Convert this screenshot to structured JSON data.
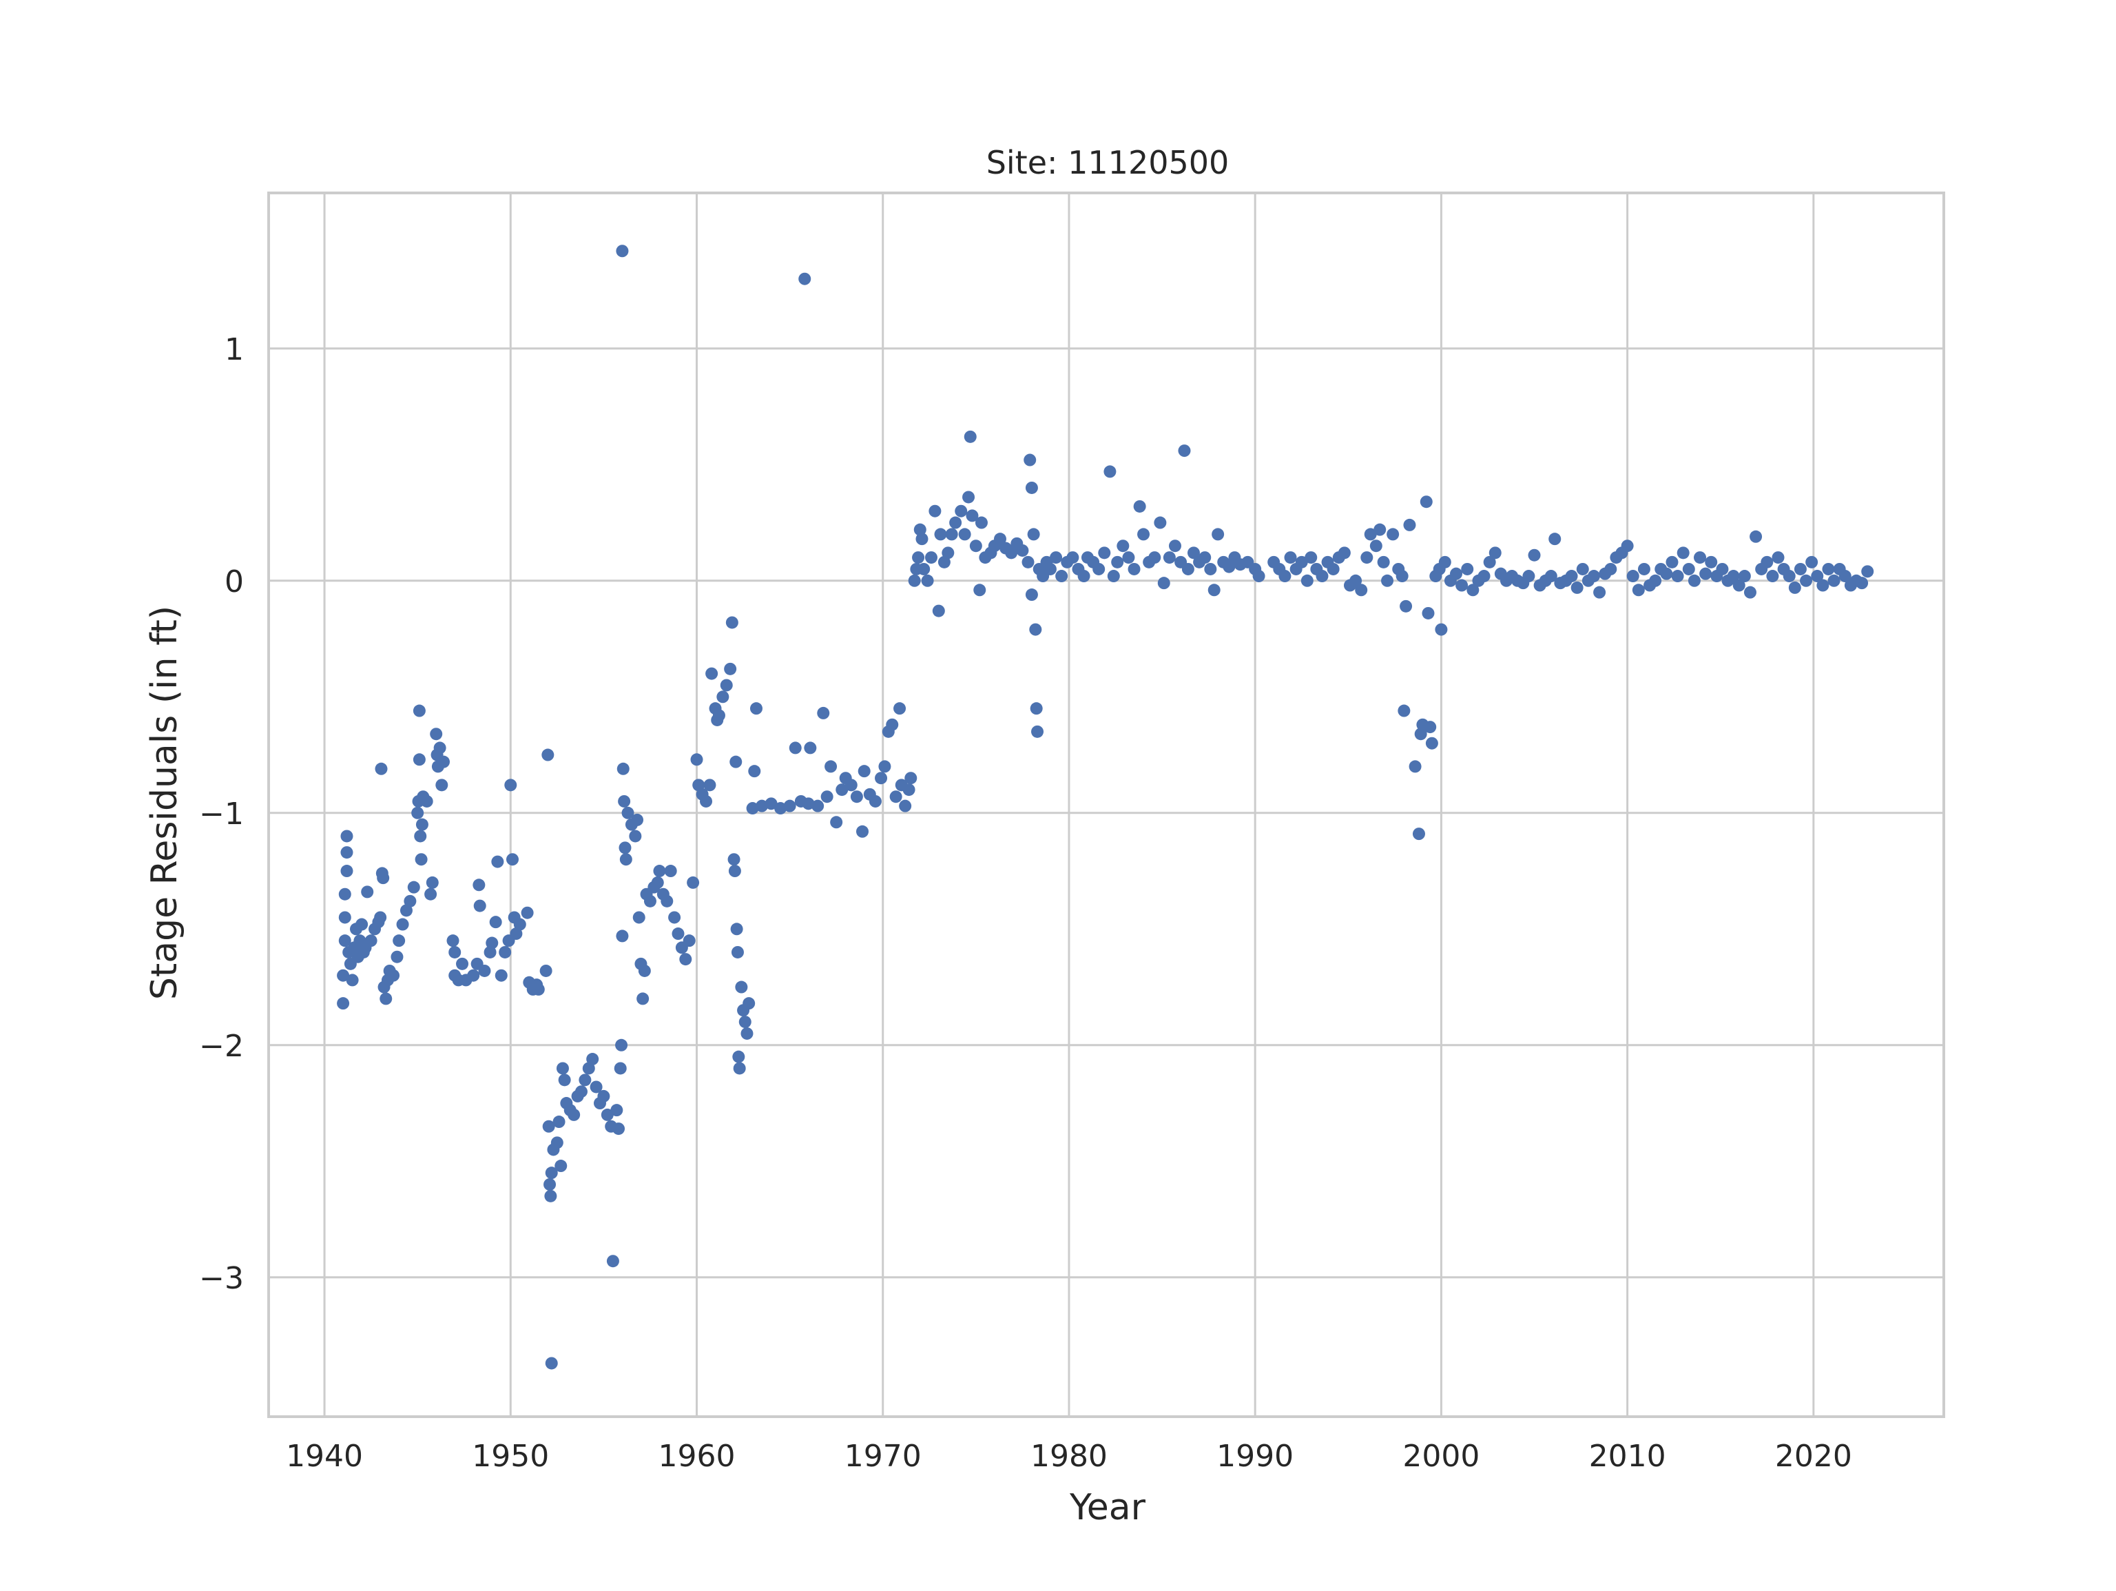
{
  "chart_data": {
    "type": "scatter",
    "title": "Site: 11120500",
    "xlabel": "Year",
    "ylabel": "Stage Residuals (in ft)",
    "xlim": [
      1937,
      2027
    ],
    "ylim": [
      -3.6,
      1.67
    ],
    "xticks": [
      1940,
      1950,
      1960,
      1970,
      1980,
      1990,
      2000,
      2010,
      2020
    ],
    "xtick_labels": [
      "1940",
      "1950",
      "1960",
      "1970",
      "1980",
      "1990",
      "2000",
      "2010",
      "2020"
    ],
    "yticks": [
      1,
      0,
      -1,
      -2,
      -3
    ],
    "ytick_labels": [
      "1",
      "0",
      "−1",
      "−2",
      "−3"
    ],
    "grid": true,
    "color": "#4c72b0",
    "points": [
      [
        1941.0,
        -1.82
      ],
      [
        1941.0,
        -1.7
      ],
      [
        1941.1,
        -1.55
      ],
      [
        1941.1,
        -1.45
      ],
      [
        1941.1,
        -1.35
      ],
      [
        1941.2,
        -1.25
      ],
      [
        1941.2,
        -1.17
      ],
      [
        1941.2,
        -1.1
      ],
      [
        1941.3,
        -1.6
      ],
      [
        1941.4,
        -1.65
      ],
      [
        1941.5,
        -1.72
      ],
      [
        1941.6,
        -1.58
      ],
      [
        1941.7,
        -1.5
      ],
      [
        1941.8,
        -1.62
      ],
      [
        1941.9,
        -1.55
      ],
      [
        1942.0,
        -1.48
      ],
      [
        1942.1,
        -1.6
      ],
      [
        1942.2,
        -1.58
      ],
      [
        1942.3,
        -1.34
      ],
      [
        1942.5,
        -1.55
      ],
      [
        1942.7,
        -1.5
      ],
      [
        1942.9,
        -1.47
      ],
      [
        1943.0,
        -1.45
      ],
      [
        1943.05,
        -0.81
      ],
      [
        1943.1,
        -1.26
      ],
      [
        1943.15,
        -1.28
      ],
      [
        1943.2,
        -1.75
      ],
      [
        1943.3,
        -1.8
      ],
      [
        1943.4,
        -1.72
      ],
      [
        1943.5,
        -1.68
      ],
      [
        1943.7,
        -1.7
      ],
      [
        1943.9,
        -1.62
      ],
      [
        1944.0,
        -1.55
      ],
      [
        1944.2,
        -1.48
      ],
      [
        1944.4,
        -1.42
      ],
      [
        1944.6,
        -1.38
      ],
      [
        1944.8,
        -1.32
      ],
      [
        1945.0,
        -1.0
      ],
      [
        1945.05,
        -0.95
      ],
      [
        1945.1,
        -0.56
      ],
      [
        1945.1,
        -0.77
      ],
      [
        1945.15,
        -1.1
      ],
      [
        1945.2,
        -1.2
      ],
      [
        1945.25,
        -1.05
      ],
      [
        1945.3,
        -0.93
      ],
      [
        1945.5,
        -0.95
      ],
      [
        1945.7,
        -1.35
      ],
      [
        1945.8,
        -1.3
      ],
      [
        1946.0,
        -0.66
      ],
      [
        1946.05,
        -0.75
      ],
      [
        1946.1,
        -0.8
      ],
      [
        1946.2,
        -0.72
      ],
      [
        1946.3,
        -0.88
      ],
      [
        1946.4,
        -0.78
      ],
      [
        1946.9,
        -1.55
      ],
      [
        1947.0,
        -1.6
      ],
      [
        1947.0,
        -1.7
      ],
      [
        1947.2,
        -1.72
      ],
      [
        1947.4,
        -1.65
      ],
      [
        1947.6,
        -1.72
      ],
      [
        1948.0,
        -1.7
      ],
      [
        1948.2,
        -1.65
      ],
      [
        1948.3,
        -1.31
      ],
      [
        1948.35,
        -1.4
      ],
      [
        1948.6,
        -1.68
      ],
      [
        1948.9,
        -1.6
      ],
      [
        1949.0,
        -1.56
      ],
      [
        1949.2,
        -1.47
      ],
      [
        1949.3,
        -1.21
      ],
      [
        1949.5,
        -1.7
      ],
      [
        1949.7,
        -1.6
      ],
      [
        1949.9,
        -1.55
      ],
      [
        1950.0,
        -0.88
      ],
      [
        1950.1,
        -1.2
      ],
      [
        1950.2,
        -1.45
      ],
      [
        1950.3,
        -1.52
      ],
      [
        1950.5,
        -1.48
      ],
      [
        1950.9,
        -1.43
      ],
      [
        1951.0,
        -1.73
      ],
      [
        1951.2,
        -1.76
      ],
      [
        1951.4,
        -1.74
      ],
      [
        1951.5,
        -1.76
      ],
      [
        1951.9,
        -1.68
      ],
      [
        1952.0,
        -0.75
      ],
      [
        1952.05,
        -2.35
      ],
      [
        1952.1,
        -2.6
      ],
      [
        1952.15,
        -2.65
      ],
      [
        1952.2,
        -2.55
      ],
      [
        1952.2,
        -3.37
      ],
      [
        1952.3,
        -2.45
      ],
      [
        1952.5,
        -2.42
      ],
      [
        1952.6,
        -2.33
      ],
      [
        1952.7,
        -2.52
      ],
      [
        1952.8,
        -2.1
      ],
      [
        1952.9,
        -2.15
      ],
      [
        1953.0,
        -2.25
      ],
      [
        1953.2,
        -2.28
      ],
      [
        1953.4,
        -2.3
      ],
      [
        1953.6,
        -2.22
      ],
      [
        1953.8,
        -2.2
      ],
      [
        1954.0,
        -2.15
      ],
      [
        1954.2,
        -2.1
      ],
      [
        1954.4,
        -2.06
      ],
      [
        1954.6,
        -2.18
      ],
      [
        1954.8,
        -2.25
      ],
      [
        1955.0,
        -2.22
      ],
      [
        1955.2,
        -2.3
      ],
      [
        1955.4,
        -2.35
      ],
      [
        1955.5,
        -2.93
      ],
      [
        1955.7,
        -2.28
      ],
      [
        1955.8,
        -2.36
      ],
      [
        1955.9,
        -2.1
      ],
      [
        1955.95,
        -2.0
      ],
      [
        1956.0,
        -1.53
      ],
      [
        1956.0,
        1.42
      ],
      [
        1956.05,
        -0.81
      ],
      [
        1956.1,
        -0.95
      ],
      [
        1956.15,
        -1.15
      ],
      [
        1956.2,
        -1.2
      ],
      [
        1956.3,
        -1.0
      ],
      [
        1956.5,
        -1.05
      ],
      [
        1956.7,
        -1.1
      ],
      [
        1956.8,
        -1.03
      ],
      [
        1956.9,
        -1.45
      ],
      [
        1957.0,
        -1.65
      ],
      [
        1957.1,
        -1.8
      ],
      [
        1957.2,
        -1.68
      ],
      [
        1957.3,
        -1.35
      ],
      [
        1957.5,
        -1.38
      ],
      [
        1957.7,
        -1.32
      ],
      [
        1957.9,
        -1.3
      ],
      [
        1958.0,
        -1.25
      ],
      [
        1958.2,
        -1.35
      ],
      [
        1958.4,
        -1.38
      ],
      [
        1958.6,
        -1.25
      ],
      [
        1958.8,
        -1.45
      ],
      [
        1959.0,
        -1.52
      ],
      [
        1959.2,
        -1.58
      ],
      [
        1959.4,
        -1.63
      ],
      [
        1959.6,
        -1.55
      ],
      [
        1959.8,
        -1.3
      ],
      [
        1960.0,
        -0.77
      ],
      [
        1960.1,
        -0.88
      ],
      [
        1960.3,
        -0.92
      ],
      [
        1960.5,
        -0.95
      ],
      [
        1960.7,
        -0.88
      ],
      [
        1960.8,
        -0.4
      ],
      [
        1961.0,
        -0.55
      ],
      [
        1961.1,
        -0.6
      ],
      [
        1961.2,
        -0.58
      ],
      [
        1961.4,
        -0.5
      ],
      [
        1961.6,
        -0.45
      ],
      [
        1961.8,
        -0.38
      ],
      [
        1961.9,
        -0.18
      ],
      [
        1962.0,
        -1.2
      ],
      [
        1962.05,
        -1.25
      ],
      [
        1962.1,
        -0.78
      ],
      [
        1962.15,
        -1.5
      ],
      [
        1962.2,
        -1.6
      ],
      [
        1962.25,
        -2.05
      ],
      [
        1962.3,
        -2.1
      ],
      [
        1962.4,
        -1.75
      ],
      [
        1962.5,
        -1.85
      ],
      [
        1962.6,
        -1.9
      ],
      [
        1962.7,
        -1.95
      ],
      [
        1962.8,
        -1.82
      ],
      [
        1963.0,
        -0.98
      ],
      [
        1963.1,
        -0.82
      ],
      [
        1963.2,
        -0.55
      ],
      [
        1963.5,
        -0.97
      ],
      [
        1964.0,
        -0.96
      ],
      [
        1964.5,
        -0.98
      ],
      [
        1965.0,
        -0.97
      ],
      [
        1965.3,
        -0.72
      ],
      [
        1965.6,
        -0.95
      ],
      [
        1965.8,
        1.3
      ],
      [
        1966.0,
        -0.96
      ],
      [
        1966.1,
        -0.72
      ],
      [
        1966.5,
        -0.97
      ],
      [
        1966.8,
        -0.57
      ],
      [
        1967.0,
        -0.93
      ],
      [
        1967.2,
        -0.8
      ],
      [
        1967.5,
        -1.04
      ],
      [
        1967.8,
        -0.9
      ],
      [
        1968.0,
        -0.85
      ],
      [
        1968.3,
        -0.88
      ],
      [
        1968.6,
        -0.93
      ],
      [
        1968.9,
        -1.08
      ],
      [
        1969.0,
        -0.82
      ],
      [
        1969.3,
        -0.92
      ],
      [
        1969.6,
        -0.95
      ],
      [
        1969.9,
        -0.85
      ],
      [
        1970.1,
        -0.8
      ],
      [
        1970.3,
        -0.65
      ],
      [
        1970.5,
        -0.62
      ],
      [
        1970.7,
        -0.93
      ],
      [
        1970.9,
        -0.55
      ],
      [
        1971.0,
        -0.88
      ],
      [
        1971.2,
        -0.97
      ],
      [
        1971.4,
        -0.9
      ],
      [
        1971.5,
        -0.85
      ],
      [
        1971.7,
        0.0
      ],
      [
        1971.8,
        0.05
      ],
      [
        1971.9,
        0.1
      ],
      [
        1972.0,
        0.22
      ],
      [
        1972.1,
        0.18
      ],
      [
        1972.2,
        0.05
      ],
      [
        1972.4,
        0.0
      ],
      [
        1972.6,
        0.1
      ],
      [
        1972.8,
        0.3
      ],
      [
        1973.0,
        -0.13
      ],
      [
        1973.1,
        0.2
      ],
      [
        1973.3,
        0.08
      ],
      [
        1973.5,
        0.12
      ],
      [
        1973.7,
        0.2
      ],
      [
        1973.9,
        0.25
      ],
      [
        1974.2,
        0.3
      ],
      [
        1974.4,
        0.2
      ],
      [
        1974.6,
        0.36
      ],
      [
        1974.7,
        0.62
      ],
      [
        1974.8,
        0.28
      ],
      [
        1975.0,
        0.15
      ],
      [
        1975.2,
        -0.04
      ],
      [
        1975.3,
        0.25
      ],
      [
        1975.5,
        0.1
      ],
      [
        1975.8,
        0.12
      ],
      [
        1976.0,
        0.15
      ],
      [
        1976.3,
        0.18
      ],
      [
        1976.6,
        0.14
      ],
      [
        1976.9,
        0.12
      ],
      [
        1977.2,
        0.16
      ],
      [
        1977.5,
        0.13
      ],
      [
        1977.8,
        0.08
      ],
      [
        1977.9,
        0.52
      ],
      [
        1978.0,
        0.4
      ],
      [
        1978.0,
        -0.06
      ],
      [
        1978.1,
        0.2
      ],
      [
        1978.2,
        -0.21
      ],
      [
        1978.25,
        -0.55
      ],
      [
        1978.3,
        -0.65
      ],
      [
        1978.4,
        0.05
      ],
      [
        1978.6,
        0.02
      ],
      [
        1978.8,
        0.08
      ],
      [
        1979.0,
        0.05
      ],
      [
        1979.3,
        0.1
      ],
      [
        1979.6,
        0.02
      ],
      [
        1979.9,
        0.08
      ],
      [
        1980.2,
        0.1
      ],
      [
        1980.5,
        0.05
      ],
      [
        1980.8,
        0.02
      ],
      [
        1981.0,
        0.1
      ],
      [
        1981.3,
        0.08
      ],
      [
        1981.6,
        0.05
      ],
      [
        1981.9,
        0.12
      ],
      [
        1982.2,
        0.47
      ],
      [
        1982.4,
        0.02
      ],
      [
        1982.6,
        0.08
      ],
      [
        1982.9,
        0.15
      ],
      [
        1983.2,
        0.1
      ],
      [
        1983.5,
        0.05
      ],
      [
        1983.8,
        0.32
      ],
      [
        1984.0,
        0.2
      ],
      [
        1984.3,
        0.08
      ],
      [
        1984.6,
        0.1
      ],
      [
        1984.9,
        0.25
      ],
      [
        1985.1,
        -0.01
      ],
      [
        1985.4,
        0.1
      ],
      [
        1985.7,
        0.15
      ],
      [
        1986.0,
        0.08
      ],
      [
        1986.2,
        0.56
      ],
      [
        1986.4,
        0.05
      ],
      [
        1986.7,
        0.12
      ],
      [
        1987.0,
        0.08
      ],
      [
        1987.3,
        0.1
      ],
      [
        1987.6,
        0.05
      ],
      [
        1987.8,
        -0.04
      ],
      [
        1988.0,
        0.2
      ],
      [
        1988.3,
        0.08
      ],
      [
        1988.6,
        0.06
      ],
      [
        1988.9,
        0.1
      ],
      [
        1989.2,
        0.07
      ],
      [
        1989.6,
        0.08
      ],
      [
        1990.0,
        0.05
      ],
      [
        1990.2,
        0.02
      ],
      [
        1991.0,
        0.08
      ],
      [
        1991.3,
        0.05
      ],
      [
        1991.6,
        0.02
      ],
      [
        1991.9,
        0.1
      ],
      [
        1992.2,
        0.05
      ],
      [
        1992.5,
        0.08
      ],
      [
        1992.8,
        0.0
      ],
      [
        1993.0,
        0.1
      ],
      [
        1993.3,
        0.05
      ],
      [
        1993.6,
        0.02
      ],
      [
        1993.9,
        0.08
      ],
      [
        1994.2,
        0.05
      ],
      [
        1994.5,
        0.1
      ],
      [
        1994.8,
        0.12
      ],
      [
        1995.1,
        -0.02
      ],
      [
        1995.4,
        0.0
      ],
      [
        1995.7,
        -0.04
      ],
      [
        1996.0,
        0.1
      ],
      [
        1996.2,
        0.2
      ],
      [
        1996.5,
        0.15
      ],
      [
        1996.7,
        0.22
      ],
      [
        1996.9,
        0.08
      ],
      [
        1997.1,
        0.0
      ],
      [
        1997.4,
        0.2
      ],
      [
        1997.7,
        0.05
      ],
      [
        1997.9,
        0.02
      ],
      [
        1998.0,
        -0.56
      ],
      [
        1998.1,
        -0.11
      ],
      [
        1998.3,
        0.24
      ],
      [
        1998.6,
        -0.8
      ],
      [
        1998.8,
        -1.09
      ],
      [
        1998.9,
        -0.66
      ],
      [
        1999.0,
        -0.62
      ],
      [
        1999.2,
        0.34
      ],
      [
        1999.3,
        -0.14
      ],
      [
        1999.4,
        -0.63
      ],
      [
        1999.5,
        -0.7
      ],
      [
        1999.7,
        0.02
      ],
      [
        1999.9,
        0.05
      ],
      [
        2000.0,
        -0.21
      ],
      [
        2000.2,
        0.08
      ],
      [
        2000.5,
        0.0
      ],
      [
        2000.8,
        0.03
      ],
      [
        2001.1,
        -0.02
      ],
      [
        2001.4,
        0.05
      ],
      [
        2001.7,
        -0.04
      ],
      [
        2002.0,
        0.0
      ],
      [
        2002.3,
        0.02
      ],
      [
        2002.6,
        0.08
      ],
      [
        2002.9,
        0.12
      ],
      [
        2003.2,
        0.03
      ],
      [
        2003.5,
        0.0
      ],
      [
        2003.8,
        0.02
      ],
      [
        2004.1,
        0.0
      ],
      [
        2004.4,
        -0.01
      ],
      [
        2004.7,
        0.02
      ],
      [
        2005.0,
        0.11
      ],
      [
        2005.3,
        -0.02
      ],
      [
        2005.6,
        0.0
      ],
      [
        2005.9,
        0.02
      ],
      [
        2006.1,
        0.18
      ],
      [
        2006.4,
        -0.01
      ],
      [
        2006.7,
        0.0
      ],
      [
        2007.0,
        0.02
      ],
      [
        2007.3,
        -0.03
      ],
      [
        2007.6,
        0.05
      ],
      [
        2007.9,
        0.0
      ],
      [
        2008.2,
        0.02
      ],
      [
        2008.5,
        -0.05
      ],
      [
        2008.8,
        0.03
      ],
      [
        2009.1,
        0.05
      ],
      [
        2009.4,
        0.1
      ],
      [
        2009.7,
        0.12
      ],
      [
        2010.0,
        0.15
      ],
      [
        2010.3,
        0.02
      ],
      [
        2010.6,
        -0.04
      ],
      [
        2010.9,
        0.05
      ],
      [
        2011.2,
        -0.02
      ],
      [
        2011.5,
        0.0
      ],
      [
        2011.8,
        0.05
      ],
      [
        2012.1,
        0.03
      ],
      [
        2012.4,
        0.08
      ],
      [
        2012.7,
        0.02
      ],
      [
        2013.0,
        0.12
      ],
      [
        2013.3,
        0.05
      ],
      [
        2013.6,
        0.0
      ],
      [
        2013.9,
        0.1
      ],
      [
        2014.2,
        0.03
      ],
      [
        2014.5,
        0.08
      ],
      [
        2014.8,
        0.02
      ],
      [
        2015.1,
        0.05
      ],
      [
        2015.4,
        0.0
      ],
      [
        2015.7,
        0.02
      ],
      [
        2016.0,
        -0.02
      ],
      [
        2016.3,
        0.02
      ],
      [
        2016.6,
        -0.05
      ],
      [
        2016.9,
        0.19
      ],
      [
        2017.2,
        0.05
      ],
      [
        2017.5,
        0.08
      ],
      [
        2017.8,
        0.02
      ],
      [
        2018.1,
        0.1
      ],
      [
        2018.4,
        0.05
      ],
      [
        2018.7,
        0.02
      ],
      [
        2019.0,
        -0.03
      ],
      [
        2019.3,
        0.05
      ],
      [
        2019.6,
        0.0
      ],
      [
        2019.9,
        0.08
      ],
      [
        2020.2,
        0.02
      ],
      [
        2020.5,
        -0.02
      ],
      [
        2020.8,
        0.05
      ],
      [
        2021.1,
        0.0
      ],
      [
        2021.4,
        0.05
      ],
      [
        2021.7,
        0.02
      ],
      [
        2022.0,
        -0.02
      ],
      [
        2022.3,
        0.0
      ],
      [
        2022.6,
        -0.01
      ],
      [
        2022.9,
        0.04
      ]
    ]
  }
}
